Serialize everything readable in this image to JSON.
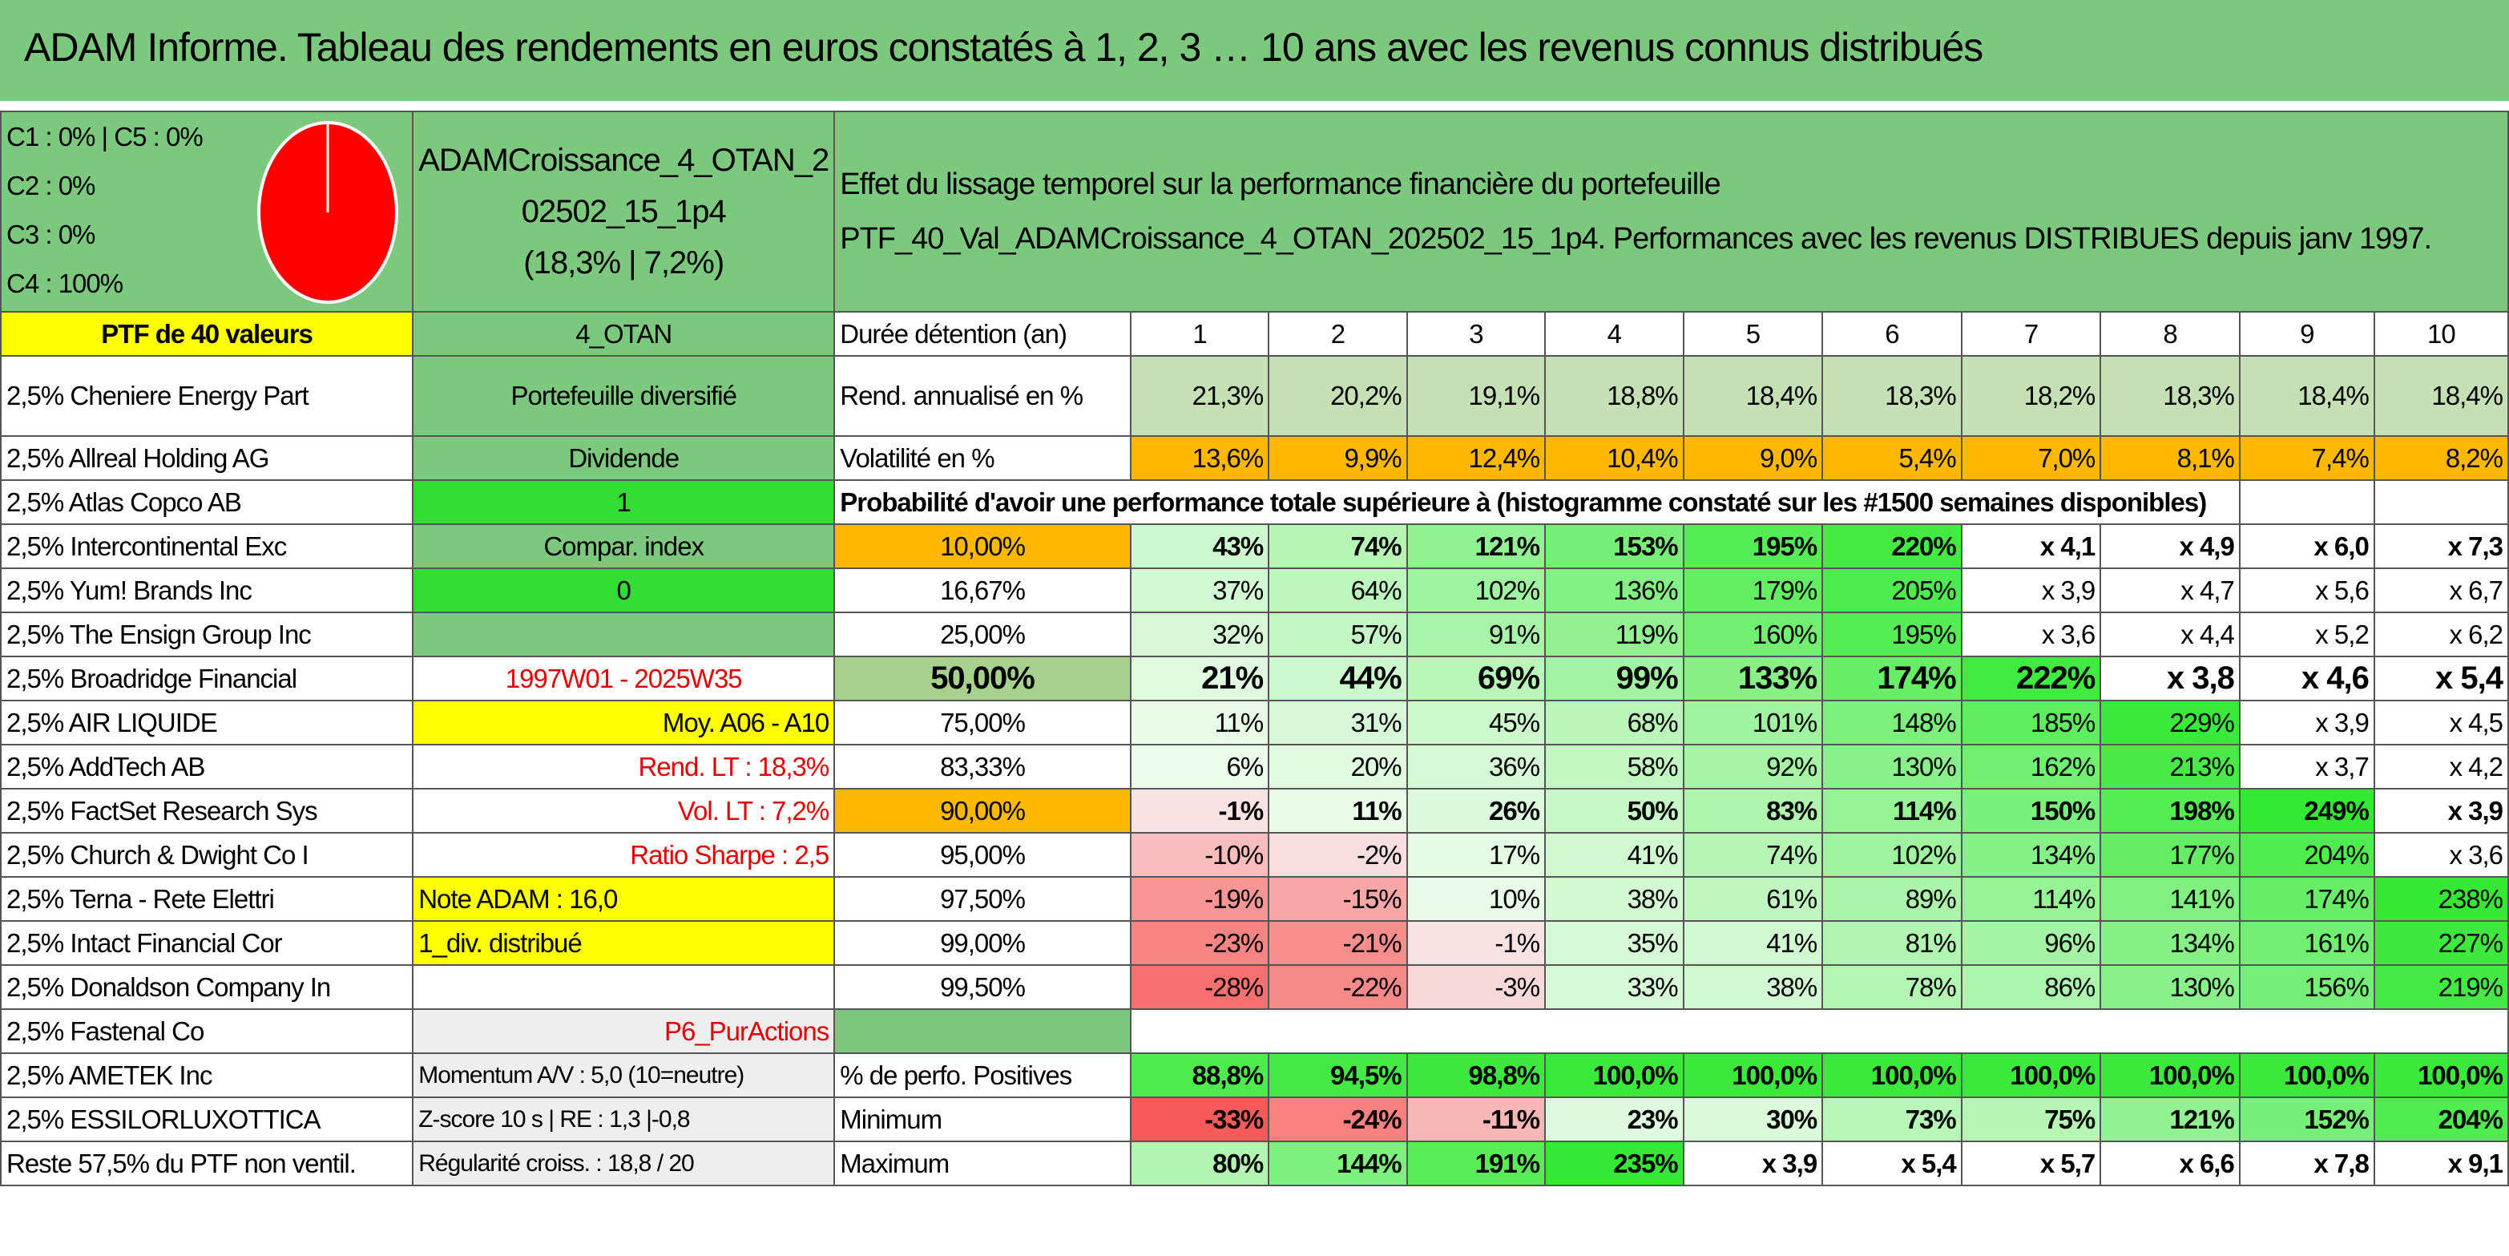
{
  "title": "ADAM Informe. Tableau des rendements en euros constatés à 1, 2, 3 … 10 ans avec les revenus connus distribués",
  "allocation": {
    "lines": [
      "C1 : 0% | C5 : 0%",
      "C2 : 0%",
      "C3 : 0%",
      "C4 : 100%"
    ],
    "pie_color": "#ff0000"
  },
  "portfolio": {
    "name_line1": "ADAMCroissance_4_OTAN_2",
    "name_line2": "02502_15_1p4",
    "name_line3": "(18,3% | 7,2%)",
    "header_line1": "Effet du lissage temporel sur la performance financière du portefeuille",
    "header_line2": "PTF_40_Val_ADAMCroissance_4_OTAN_202502_15_1p4. Performances avec les revenus DISTRIBUES depuis janv 1997."
  },
  "left_col": [
    "PTF de 40 valeurs",
    "2,5% Cheniere Energy Part",
    "2,5% Allreal Holding AG",
    "2,5% Atlas Copco AB",
    "2,5% Intercontinental Exc",
    "2,5% Yum! Brands Inc",
    "2,5% The Ensign Group Inc",
    "2,5% Broadridge Financial",
    "2,5% AIR LIQUIDE",
    "2,5% AddTech AB",
    "2,5% FactSet Research Sys",
    "2,5% Church & Dwight Co I",
    "2,5% Terna - Rete Elettri",
    "2,5% Intact Financial Cor",
    "2,5% Donaldson Company In",
    "2,5% Fastenal Co",
    "2,5% AMETEK Inc",
    "2,5% ESSILORLUXOTTICA",
    "Reste 57,5% du PTF non ventil."
  ],
  "mid_col": [
    "4_OTAN",
    "Portefeuille diversifié",
    "Dividende",
    "1",
    "Compar. index",
    "0",
    "",
    "1997W01 - 2025W35",
    "Moy. A06 - A10",
    "Rend. LT : 18,3%",
    "Vol. LT : 7,2%",
    "Ratio Sharpe : 2,5",
    "Note ADAM : 16,0",
    "1_div. distribué",
    "",
    "P6_PurActions",
    "Momentum A/V : 5,0 (10=neutre)",
    "Z-score 10 s | RE : 1,3 |-0,8",
    "Régularité croiss. : 18,8 / 20"
  ],
  "years": [
    "1",
    "2",
    "3",
    "4",
    "5",
    "6",
    "7",
    "8",
    "9",
    "10"
  ],
  "labels": {
    "duration": "Durée détention (an)",
    "rend": "Rend. annualisé en %",
    "vol": "Volatilité en %",
    "proba": "Probabilité d'avoir une performance totale supérieure à (histogramme constaté sur les #1500 semaines disponibles)",
    "pos": "% de perfo. Positives",
    "min": "Minimum",
    "max": "Maximum"
  },
  "rend": [
    "21,3%",
    "20,2%",
    "19,1%",
    "18,8%",
    "18,4%",
    "18,3%",
    "18,2%",
    "18,3%",
    "18,4%",
    "18,4%"
  ],
  "vol": [
    "13,6%",
    "9,9%",
    "12,4%",
    "10,4%",
    "9,0%",
    "5,4%",
    "7,0%",
    "8,1%",
    "7,4%",
    "8,2%"
  ],
  "quantiles": [
    {
      "p": "10,00%",
      "v": [
        "43%",
        "74%",
        "121%",
        "153%",
        "195%",
        "220%",
        "x 4,1",
        "x 4,9",
        "x 6,0",
        "x 7,3"
      ]
    },
    {
      "p": "16,67%",
      "v": [
        "37%",
        "64%",
        "102%",
        "136%",
        "179%",
        "205%",
        "x 3,9",
        "x 4,7",
        "x 5,6",
        "x 6,7"
      ]
    },
    {
      "p": "25,00%",
      "v": [
        "32%",
        "57%",
        "91%",
        "119%",
        "160%",
        "195%",
        "x 3,6",
        "x 4,4",
        "x 5,2",
        "x 6,2"
      ]
    },
    {
      "p": "50,00%",
      "v": [
        "21%",
        "44%",
        "69%",
        "99%",
        "133%",
        "174%",
        "222%",
        "x 3,8",
        "x 4,6",
        "x 5,4"
      ]
    },
    {
      "p": "75,00%",
      "v": [
        "11%",
        "31%",
        "45%",
        "68%",
        "101%",
        "148%",
        "185%",
        "229%",
        "x 3,9",
        "x 4,5"
      ]
    },
    {
      "p": "83,33%",
      "v": [
        "6%",
        "20%",
        "36%",
        "58%",
        "92%",
        "130%",
        "162%",
        "213%",
        "x 3,7",
        "x 4,2"
      ]
    },
    {
      "p": "90,00%",
      "v": [
        "-1%",
        "11%",
        "26%",
        "50%",
        "83%",
        "114%",
        "150%",
        "198%",
        "249%",
        "x 3,9"
      ]
    },
    {
      "p": "95,00%",
      "v": [
        "-10%",
        "-2%",
        "17%",
        "41%",
        "74%",
        "102%",
        "134%",
        "177%",
        "204%",
        "x 3,6"
      ]
    },
    {
      "p": "97,50%",
      "v": [
        "-19%",
        "-15%",
        "10%",
        "38%",
        "61%",
        "89%",
        "114%",
        "141%",
        "174%",
        "238%"
      ]
    },
    {
      "p": "99,00%",
      "v": [
        "-23%",
        "-21%",
        "-1%",
        "35%",
        "41%",
        "81%",
        "96%",
        "134%",
        "161%",
        "227%"
      ]
    },
    {
      "p": "99,50%",
      "v": [
        "-28%",
        "-22%",
        "-3%",
        "33%",
        "38%",
        "78%",
        "86%",
        "130%",
        "156%",
        "219%"
      ]
    }
  ],
  "pos": [
    "88,8%",
    "94,5%",
    "98,8%",
    "100,0%",
    "100,0%",
    "100,0%",
    "100,0%",
    "100,0%",
    "100,0%",
    "100,0%"
  ],
  "min": [
    "-33%",
    "-24%",
    "-11%",
    "23%",
    "30%",
    "73%",
    "75%",
    "121%",
    "152%",
    "204%"
  ],
  "max": [
    "80%",
    "144%",
    "191%",
    "235%",
    "x 3,9",
    "x 5,4",
    "x 5,7",
    "x 6,6",
    "x 7,8",
    "x 9,1"
  ],
  "colors": {
    "header_green": "#7dc87f",
    "yellow": "#ffff00",
    "bright_green": "#33dd33",
    "orange": "#ffb800",
    "red": "#e00000"
  }
}
